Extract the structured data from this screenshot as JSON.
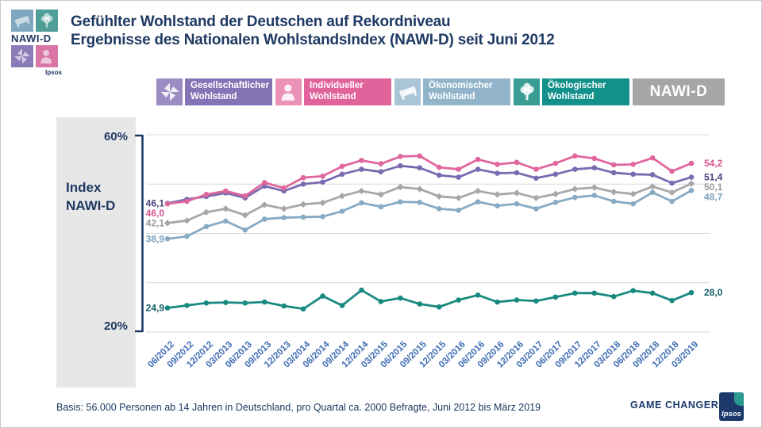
{
  "header": {
    "logo": {
      "text": "NAWI-D",
      "sub": "Ipsos",
      "tiles": [
        {
          "icon": "bed-icon",
          "color": "#7fa8c0"
        },
        {
          "icon": "tree-icon",
          "color": "#4f9e97"
        },
        {
          "icon": "pinwheel-icon",
          "color": "#8b7cb8"
        },
        {
          "icon": "person-icon",
          "color": "#d877a5"
        }
      ]
    },
    "title_line1": "Gefühlter Wohlstand der Deutschen auf Rekordniveau",
    "title_line2": "Ergebnisse des Nationalen WohlstandsIndex (NAWI-D) seit Juni 2012"
  },
  "legend": {
    "items": [
      {
        "label_line1": "Gesellschaftlicher",
        "label_line2": "Wohlstand",
        "color": "#8474b6",
        "icon_bg": "#9b8cc4",
        "icon": "pinwheel-icon"
      },
      {
        "label_line1": "Individueller",
        "label_line2": "Wohlstand",
        "color": "#e0639c",
        "icon_bg": "#ec92b8",
        "icon": "person-icon"
      },
      {
        "label_line1": "Ökonomischer",
        "label_line2": "Wohlstand",
        "color": "#92b4cb",
        "icon_bg": "#a9c5d6",
        "icon": "bed-icon"
      },
      {
        "label_line1": "Ökologischer",
        "label_line2": "Wohlstand",
        "color": "#12908a",
        "icon_bg": "#3a9c92",
        "icon": "tree-icon"
      }
    ],
    "nawi_label": "NAWI-D",
    "nawi_color": "#a6a6a6"
  },
  "axis_panel": {
    "top_label": "60%",
    "bottom_label": "20%",
    "index_label_line1": "Index",
    "index_label_line2": "NAWI-D"
  },
  "chart_data": {
    "type": "line",
    "title": "Ergebnisse des Nationalen WohlstandsIndex (NAWI-D) seit Juni 2012",
    "xlabel": "",
    "ylabel": "Index NAWI-D",
    "ylim": [
      20,
      60
    ],
    "yticks": [
      20,
      30,
      40,
      50,
      60
    ],
    "grid": true,
    "legend_position": "top",
    "categories": [
      "06/2012",
      "09/2012",
      "12/2012",
      "03/2013",
      "06/2013",
      "09/2013",
      "12/2013",
      "03/2014",
      "06/2014",
      "09/2014",
      "12/2014",
      "03/2015",
      "06/2015",
      "09/2015",
      "12/2015",
      "03/2016",
      "06/2016",
      "09/2016",
      "12/2016",
      "03/2017",
      "06/2017",
      "09/2017",
      "12/2017",
      "03/2018",
      "06/2018",
      "09/2018",
      "12/2018",
      "03/2019"
    ],
    "series": [
      {
        "name": "NAWI-D",
        "color": "#a8a6a7",
        "label_color": "#9a989a",
        "marker": "diamond",
        "start_label": "42,1",
        "end_label": "50,1",
        "values": [
          42.1,
          42.6,
          44.3,
          45.0,
          43.7,
          45.8,
          45.0,
          45.9,
          46.2,
          47.6,
          48.6,
          47.9,
          49.4,
          49.0,
          47.5,
          47.2,
          48.6,
          47.9,
          48.2,
          47.2,
          48.0,
          49.0,
          49.3,
          48.4,
          48.0,
          49.5,
          48.3,
          50.1
        ]
      },
      {
        "name": "Ökonomischer Wohlstand",
        "color": "#87abc5",
        "label_color": "#7aa0bc",
        "marker": "circle",
        "start_label": "38,9",
        "end_label": "48,7",
        "values": [
          38.9,
          39.4,
          41.4,
          42.5,
          40.7,
          42.9,
          43.2,
          43.3,
          43.4,
          44.5,
          46.2,
          45.4,
          46.4,
          46.3,
          45.0,
          44.7,
          46.4,
          45.6,
          46.0,
          45.0,
          46.3,
          47.3,
          47.7,
          46.5,
          46.0,
          48.3,
          46.5,
          48.7
        ]
      },
      {
        "name": "Gesellschaftlicher Wohlstand",
        "color": "#7b6ab0",
        "label_color": "#4d4382",
        "marker": "circle",
        "start_label": "46,1",
        "end_label": "51,4",
        "values": [
          46.1,
          46.9,
          47.5,
          48.2,
          47.2,
          49.6,
          48.6,
          50.0,
          50.4,
          52.0,
          53.0,
          52.5,
          53.7,
          53.3,
          51.8,
          51.4,
          53.0,
          52.2,
          52.3,
          51.2,
          52.0,
          53.0,
          53.3,
          52.3,
          52.0,
          51.9,
          50.2,
          51.4
        ]
      },
      {
        "name": "Individueller Wohlstand",
        "color": "#e0679d",
        "label_color": "#d5538f",
        "marker": "circle",
        "start_label": "46,0",
        "end_label": "54,2",
        "values": [
          46.0,
          46.5,
          47.9,
          48.6,
          47.6,
          50.3,
          49.2,
          51.3,
          51.6,
          53.6,
          54.8,
          54.1,
          55.6,
          55.7,
          53.4,
          53.0,
          55.0,
          54.0,
          54.4,
          53.0,
          54.2,
          55.7,
          55.2,
          53.9,
          54.0,
          55.3,
          52.6,
          54.2
        ]
      },
      {
        "name": "Ökologischer Wohlstand",
        "color": "#18897f",
        "label_color": "#115e66",
        "marker": "circle",
        "start_label": "24,9",
        "end_label": "28,0",
        "values": [
          24.9,
          25.4,
          25.9,
          26.0,
          25.9,
          26.1,
          25.3,
          24.7,
          27.3,
          25.4,
          28.5,
          26.2,
          26.9,
          25.7,
          25.1,
          26.5,
          27.5,
          26.1,
          26.5,
          26.3,
          27.1,
          27.9,
          27.9,
          27.2,
          28.4,
          27.9,
          26.4,
          28.0
        ]
      }
    ],
    "axis_color": "#17375e",
    "grid_color": "#d9d9d9",
    "xlabel_color": "#3e6cb4"
  },
  "footer": {
    "basis": "Basis: 56.000 Personen ab 14 Jahren in Deutschland, pro Quartal ca. 2000 Befragte, Juni 2012 bis März 2019",
    "brand": "GAME CHANGERS",
    "logo": "Ipsos"
  }
}
